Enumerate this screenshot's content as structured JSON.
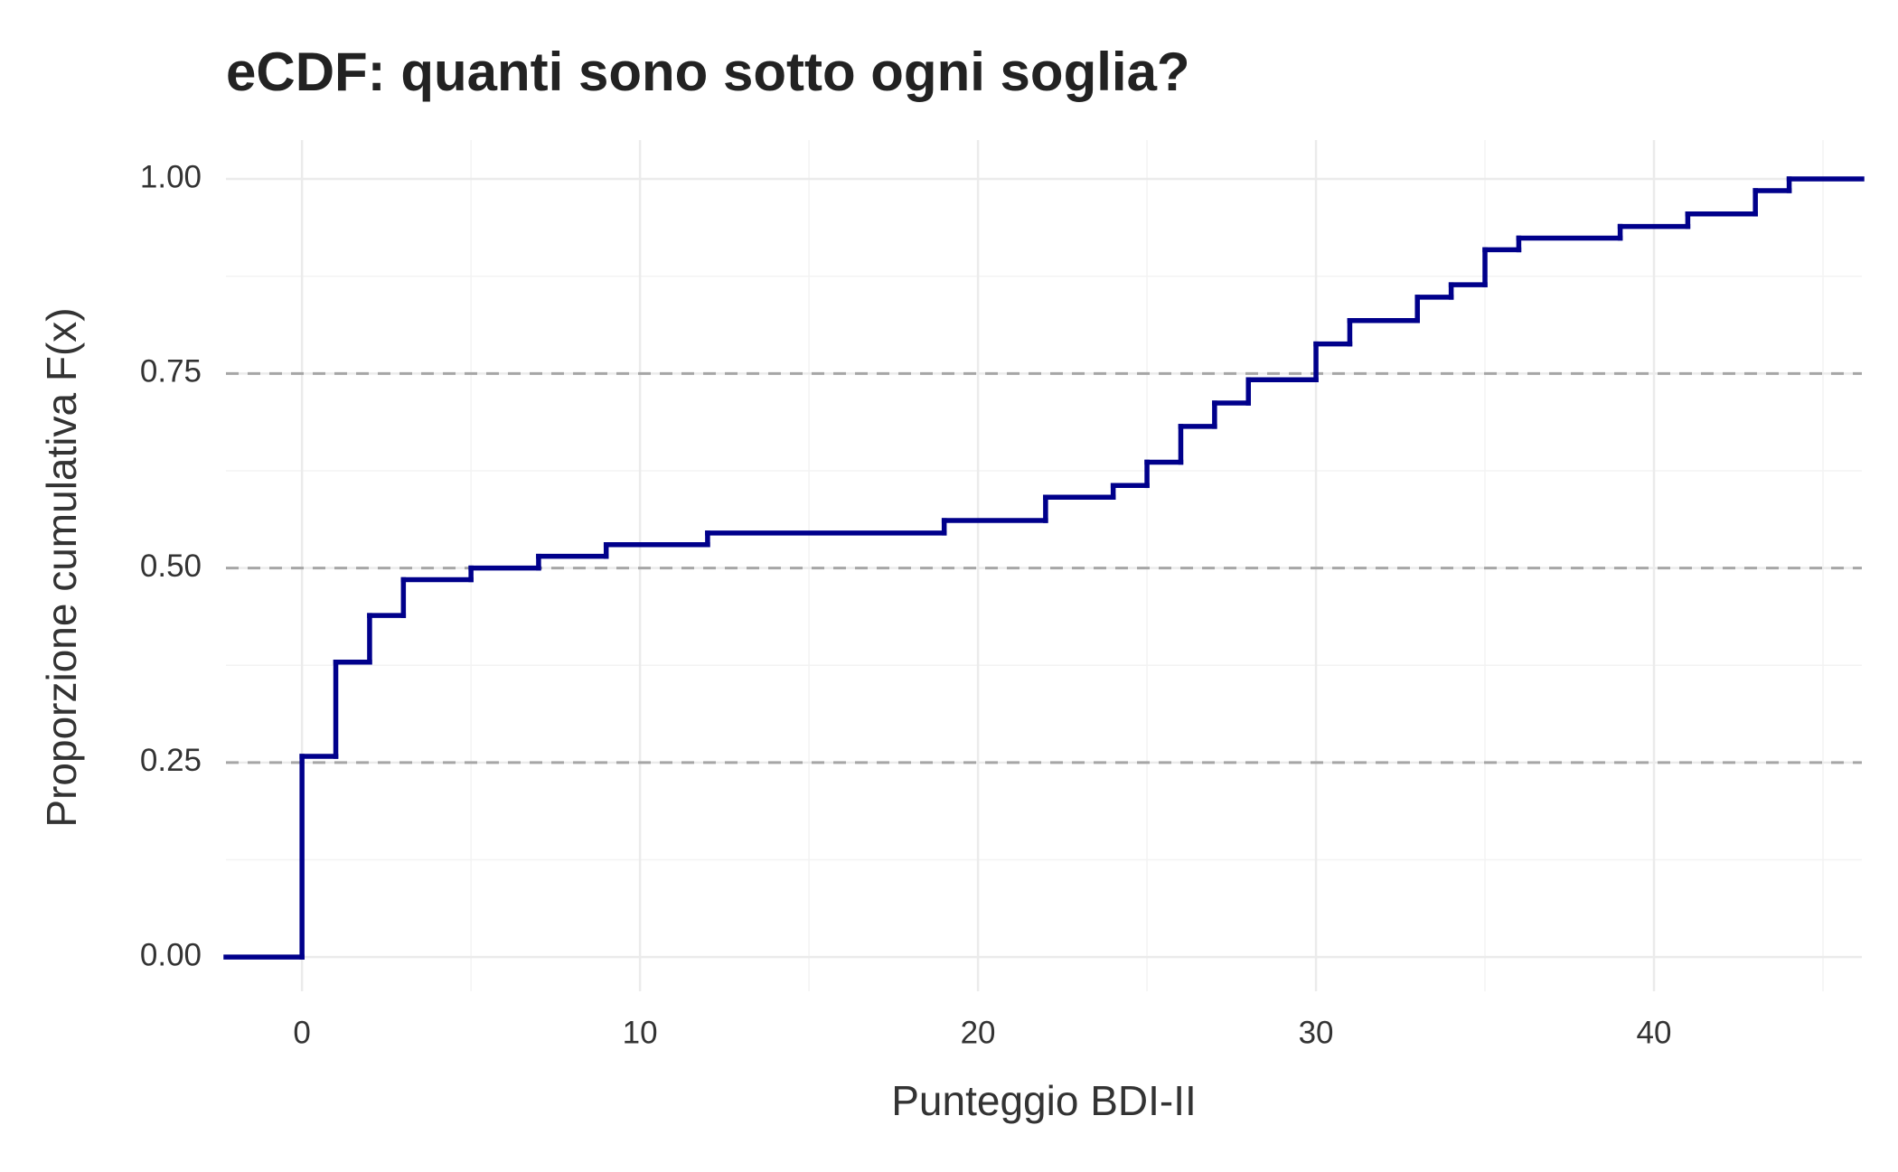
{
  "chart_data": {
    "type": "step",
    "title": "eCDF: quanti sono sotto ogni soglia?",
    "x_label": "Punteggio BDI-II",
    "y_label": "Proporzione cumulativa F(x)",
    "series": [
      {
        "color": "#00008b",
        "x": [
          0,
          1,
          2,
          3,
          5,
          7,
          9,
          12,
          19,
          22,
          24,
          25,
          26,
          27,
          28,
          30,
          31,
          33,
          34,
          35,
          36,
          39,
          41,
          43,
          44
        ],
        "values": [
          0.258,
          0.379,
          0.439,
          0.485,
          0.5,
          0.515,
          0.53,
          0.545,
          0.561,
          0.591,
          0.606,
          0.636,
          0.682,
          0.712,
          0.742,
          0.788,
          0.818,
          0.848,
          0.864,
          0.909,
          0.924,
          0.939,
          0.955,
          0.985,
          1.0
        ]
      }
    ],
    "xlim": [
      -2.25,
      46.15
    ],
    "ylim": [
      -0.044,
      1.05
    ],
    "xticks": [
      0,
      10,
      20,
      30,
      40
    ],
    "yticks": [
      {
        "value": 0,
        "label": "0.00"
      },
      {
        "value": 0.25,
        "label": "0.25"
      },
      {
        "value": 0.5,
        "label": "0.50"
      },
      {
        "value": 0.75,
        "label": "0.75"
      },
      {
        "value": 1,
        "label": "1.00"
      }
    ],
    "minor_xticks": [
      5,
      15,
      25,
      35,
      45
    ],
    "minor_yticks": [
      0.125,
      0.375,
      0.625,
      0.875
    ],
    "hlines": [
      0.25,
      0.5,
      0.75
    ],
    "hline_color": "#a6a6a6",
    "grid": true
  }
}
